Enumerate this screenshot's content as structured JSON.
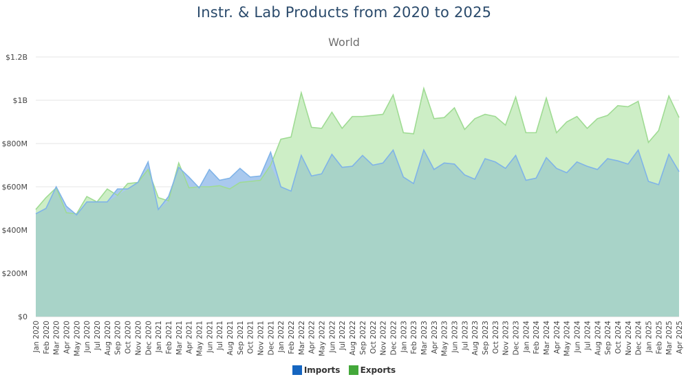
{
  "header": {
    "title": "Instr. & Lab Products from 2020 to 2025",
    "subtitle": "World"
  },
  "legend": {
    "imports_label": "Imports",
    "exports_label": "Exports"
  },
  "colors": {
    "imports_line": "#7fb3e8",
    "imports_fill": "#a9c9ee",
    "exports_line": "#9fdb93",
    "exports_fill": "#cdeec6",
    "overlap_fill": "#a8d3c8",
    "imports_swatch": "#1565c0",
    "exports_swatch": "#43a83a",
    "grid": "#e6e6e6",
    "tick_text": "#444444"
  },
  "chart_data": {
    "type": "area",
    "title": "Instr. & Lab Products from 2020 to 2025",
    "subtitle": "World",
    "ylim": [
      0,
      1200000000
    ],
    "y_ticks": [
      0,
      200000000,
      400000000,
      600000000,
      800000000,
      1000000000,
      1200000000
    ],
    "y_tick_labels": [
      "$0",
      "$200M",
      "$400M",
      "$600M",
      "$800M",
      "$1B",
      "$1.2B"
    ],
    "grid": true,
    "legend_position": "bottom-center",
    "categories": [
      "Jan 2020",
      "Feb 2020",
      "Mar 2020",
      "Apr 2020",
      "May 2020",
      "Jun 2020",
      "Jul 2020",
      "Aug 2020",
      "Sep 2020",
      "Oct 2020",
      "Nov 2020",
      "Dec 2020",
      "Jan 2021",
      "Feb 2021",
      "Mar 2021",
      "Apr 2021",
      "May 2021",
      "Jun 2021",
      "Jul 2021",
      "Aug 2021",
      "Sep 2021",
      "Oct 2021",
      "Nov 2021",
      "Dec 2021",
      "Jan 2022",
      "Feb 2022",
      "Mar 2022",
      "Apr 2022",
      "May 2022",
      "Jun 2022",
      "Jul 2022",
      "Aug 2022",
      "Sep 2022",
      "Oct 2022",
      "Nov 2022",
      "Dec 2022",
      "Jan 2023",
      "Feb 2023",
      "Mar 2023",
      "Apr 2023",
      "May 2023",
      "Jun 2023",
      "Jul 2023",
      "Aug 2023",
      "Sep 2023",
      "Oct 2023",
      "Nov 2023",
      "Dec 2023",
      "Jan 2024",
      "Feb 2024",
      "Mar 2024",
      "Apr 2024",
      "May 2024",
      "Jun 2024",
      "Jul 2024",
      "Aug 2024",
      "Sep 2024",
      "Oct 2024",
      "Nov 2024",
      "Dec 2024",
      "Jan 2025",
      "Feb 2025",
      "Mar 2025",
      "Apr 2025"
    ],
    "series": [
      {
        "name": "Imports",
        "values": [
          475000000,
          500000000,
          600000000,
          510000000,
          470000000,
          530000000,
          530000000,
          530000000,
          590000000,
          590000000,
          620000000,
          715000000,
          495000000,
          555000000,
          690000000,
          645000000,
          595000000,
          680000000,
          630000000,
          640000000,
          685000000,
          645000000,
          650000000,
          760000000,
          600000000,
          580000000,
          745000000,
          650000000,
          660000000,
          750000000,
          690000000,
          695000000,
          745000000,
          700000000,
          710000000,
          770000000,
          645000000,
          615000000,
          770000000,
          680000000,
          710000000,
          705000000,
          655000000,
          635000000,
          730000000,
          715000000,
          685000000,
          745000000,
          630000000,
          640000000,
          735000000,
          685000000,
          665000000,
          715000000,
          695000000,
          680000000,
          730000000,
          720000000,
          705000000,
          770000000,
          625000000,
          610000000,
          750000000,
          670000000
        ]
      },
      {
        "name": "Exports",
        "values": [
          495000000,
          550000000,
          595000000,
          480000000,
          475000000,
          555000000,
          530000000,
          590000000,
          560000000,
          615000000,
          620000000,
          680000000,
          550000000,
          535000000,
          710000000,
          595000000,
          600000000,
          600000000,
          605000000,
          590000000,
          620000000,
          625000000,
          630000000,
          700000000,
          820000000,
          830000000,
          1035000000,
          875000000,
          870000000,
          945000000,
          870000000,
          925000000,
          925000000,
          930000000,
          935000000,
          1025000000,
          850000000,
          845000000,
          1055000000,
          915000000,
          920000000,
          965000000,
          865000000,
          915000000,
          935000000,
          925000000,
          885000000,
          1015000000,
          850000000,
          850000000,
          1010000000,
          850000000,
          900000000,
          925000000,
          870000000,
          915000000,
          930000000,
          975000000,
          970000000,
          995000000,
          805000000,
          860000000,
          1020000000,
          920000000
        ]
      }
    ]
  }
}
